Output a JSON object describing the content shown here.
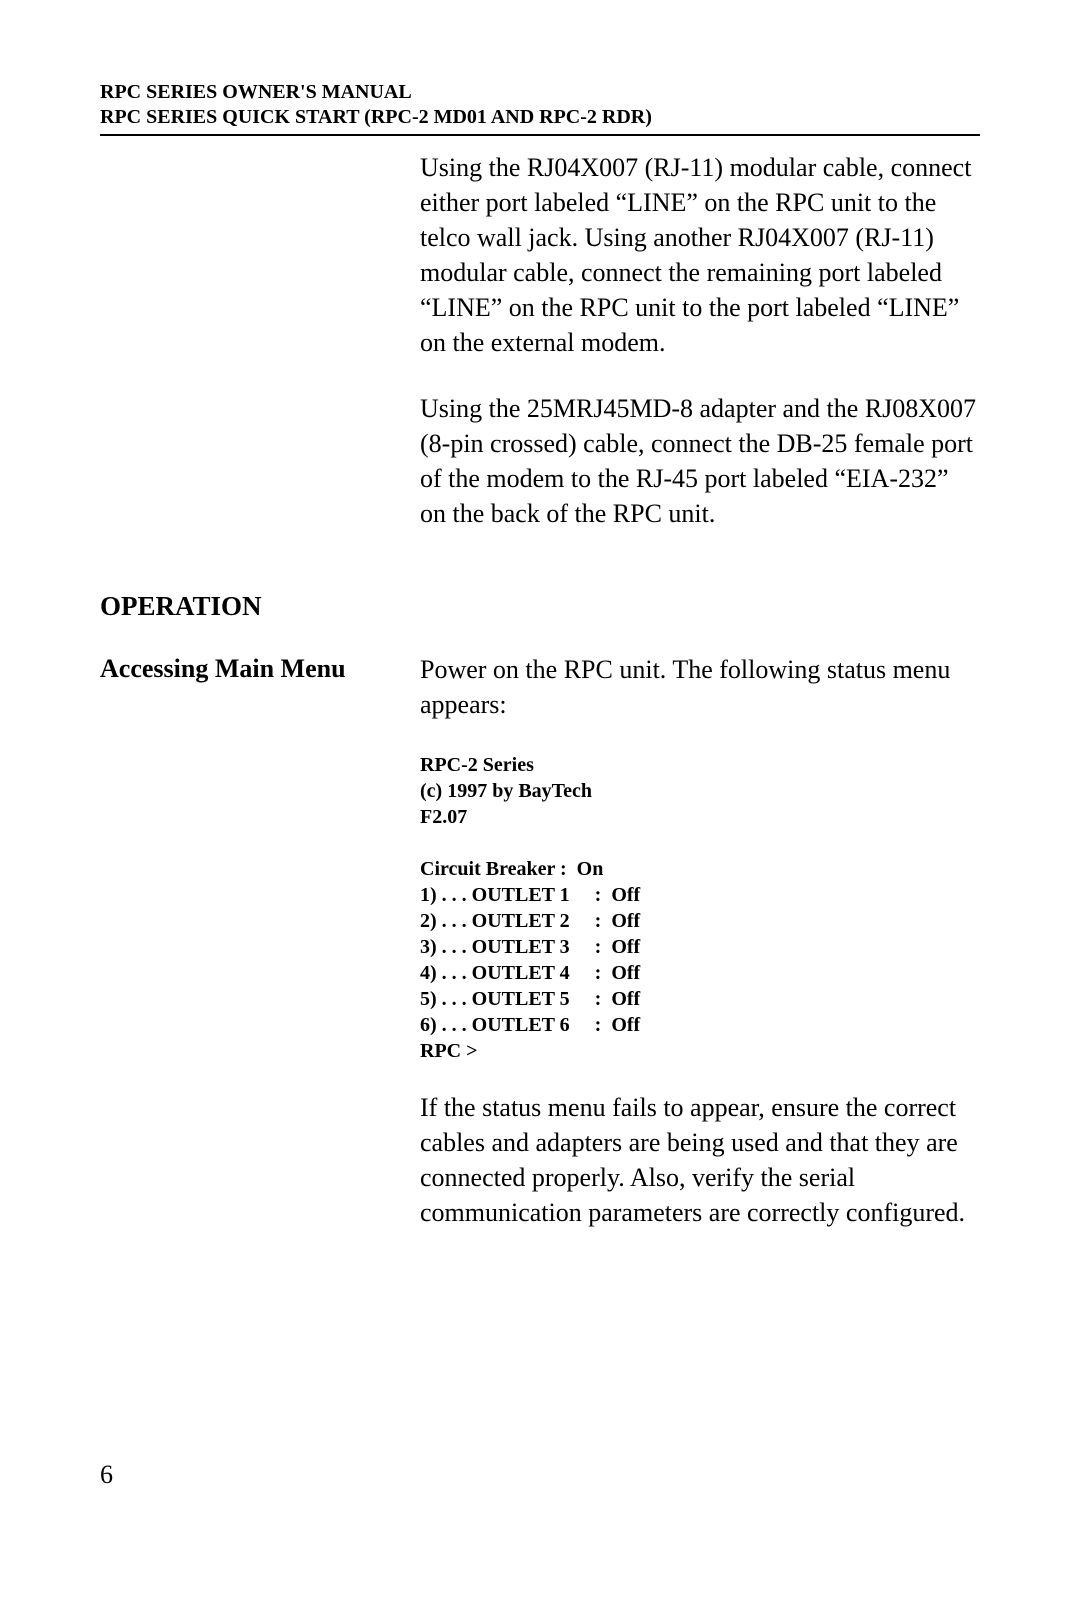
{
  "header": {
    "line1": "RPC SERIES OWNER'S MANUAL",
    "line2": "RPC SERIES QUICK START (RPC-2 MD01 AND RPC-2 RDR)"
  },
  "body": {
    "para1": "Using the RJ04X007 (RJ-11) modular cable, connect either port labeled “LINE” on the RPC unit to the telco wall jack. Using another RJ04X007 (RJ-11) modular cable, connect the remaining port labeled “LINE” on the RPC unit to the port labeled “LINE” on the external modem.",
    "para2": "Using the 25MRJ45MD-8 adapter and the RJ08X007 (8-pin crossed) cable, connect the DB-25 female port of the modem to the RJ-45 port labeled “EIA-232” on the back of the RPC unit.",
    "section_heading": "OPERATION",
    "subsection_label": "Accessing Main Menu",
    "para3": "Power on the RPC unit. The following status menu appears:",
    "status": {
      "title_lines": [
        "RPC-2 Series",
        "(c) 1997 by BayTech",
        "F2.07"
      ],
      "breaker_label": "Circuit Breaker",
      "breaker_state": "On",
      "outlets": [
        {
          "n": "1",
          "name": "OUTLET 1",
          "state": "Off"
        },
        {
          "n": "2",
          "name": "OUTLET 2",
          "state": "Off"
        },
        {
          "n": "3",
          "name": "OUTLET 3",
          "state": "Off"
        },
        {
          "n": "4",
          "name": "OUTLET 4",
          "state": "Off"
        },
        {
          "n": "5",
          "name": "OUTLET 5",
          "state": "Off"
        },
        {
          "n": "6",
          "name": "OUTLET 6",
          "state": "Off"
        }
      ],
      "prompt": "RPC >"
    },
    "para4": "If the status menu fails to appear, ensure the correct cables and adapters are being used and that they are connected properly. Also, verify the serial communication parameters are correctly configured."
  },
  "page_number": "6"
}
